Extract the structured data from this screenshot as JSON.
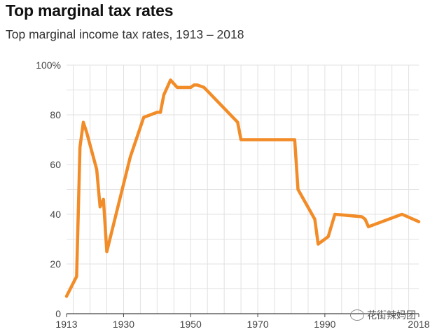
{
  "header": {
    "title": "Top marginal tax rates",
    "subtitle": "Top marginal income tax rates, 1913 – 2018"
  },
  "watermark": {
    "text": "花街辣妈团",
    "icon": "wechat-icon"
  },
  "chart_data": {
    "type": "line",
    "title": "Top marginal tax rates",
    "subtitle": "Top marginal income tax rates, 1913 – 2018",
    "xlabel": "",
    "ylabel": "",
    "xlim": [
      1913,
      2018
    ],
    "ylim": [
      0,
      100
    ],
    "grid": true,
    "line_color": "#F28C28",
    "xticks": [
      1913,
      1930,
      1950,
      1970,
      1990,
      2018
    ],
    "xtick_labels": [
      "1913",
      "1930",
      "1950",
      "1970",
      "1990",
      "2018"
    ],
    "yticks": [
      0,
      20,
      40,
      60,
      80,
      100
    ],
    "ytick_labels": [
      "0",
      "20",
      "40",
      "60",
      "80",
      "100%"
    ],
    "series": [
      {
        "name": "Top marginal income tax rate",
        "x": [
          1913,
          1916,
          1917,
          1918,
          1919,
          1922,
          1923,
          1924,
          1925,
          1932,
          1936,
          1940,
          1941,
          1942,
          1944,
          1946,
          1950,
          1951,
          1952,
          1954,
          1964,
          1965,
          1981,
          1982,
          1987,
          1988,
          1991,
          1993,
          2001,
          2002,
          2003,
          2013,
          2018
        ],
        "y": [
          7,
          15,
          67,
          77,
          73,
          58,
          43,
          46,
          25,
          63,
          79,
          81,
          81,
          88,
          94,
          91,
          91,
          92,
          92,
          91,
          77,
          70,
          70,
          50,
          38,
          28,
          31,
          40,
          39,
          38,
          35,
          40,
          37
        ]
      }
    ]
  }
}
